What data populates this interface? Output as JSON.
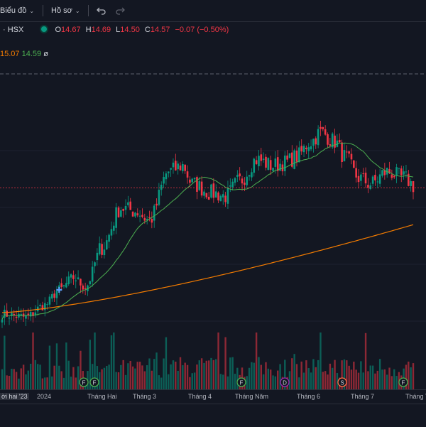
{
  "toolbar": {
    "chart_label": "Biểu đồ",
    "profile_label": "Hồ sơ"
  },
  "symbol": {
    "exchange_label": "· HSX",
    "o_label": "O",
    "o_value": "14.67",
    "h_label": "H",
    "h_value": "14.69",
    "l_label": "L",
    "l_value": "14.50",
    "c_label": "C",
    "c_value": "14.57",
    "change": "−0.07 (−0.50%)"
  },
  "indicator": {
    "slow": "15.07",
    "fast": "14.59",
    "suffix": "ø"
  },
  "colors": {
    "up": "#089981",
    "down": "#f23645",
    "ma_fast": "#4caf50",
    "ma_slow": "#f57c00",
    "background": "#131722"
  },
  "time_axis": {
    "current_label": "ời hai '23",
    "ticks": [
      "2024",
      "Tháng Hai",
      "Tháng 3",
      "Tháng 4",
      "Tháng Năm",
      "Tháng 6",
      "Tháng 7",
      "Tháng T"
    ]
  },
  "event_markers": [
    {
      "letter": "F",
      "kind": "dividend"
    },
    {
      "letter": "F",
      "kind": "dividend"
    },
    {
      "letter": "F",
      "kind": "dividend"
    },
    {
      "letter": "D",
      "kind": "earnings"
    },
    {
      "letter": "S",
      "kind": "split"
    },
    {
      "letter": "F",
      "kind": "dividend"
    }
  ],
  "chart_data": {
    "type": "candlestick",
    "ma_fast_period": 20,
    "ma_slow_period": 200,
    "price_line": 14.57,
    "ylim": [
      9.7,
      17.2
    ],
    "anchors": [
      [
        0,
        10.4
      ],
      [
        10,
        10.3
      ],
      [
        18,
        10.7
      ],
      [
        24,
        11.2
      ],
      [
        30,
        11.6
      ],
      [
        35,
        11.3
      ],
      [
        42,
        12.6
      ],
      [
        50,
        13.9
      ],
      [
        56,
        13.8
      ],
      [
        62,
        13.5
      ],
      [
        70,
        15.1
      ],
      [
        76,
        15.3
      ],
      [
        80,
        14.7
      ],
      [
        88,
        14.4
      ],
      [
        94,
        14.3
      ],
      [
        100,
        14.8
      ],
      [
        107,
        15.5
      ],
      [
        114,
        15.3
      ],
      [
        119,
        15.4
      ],
      [
        124,
        15.6
      ],
      [
        130,
        16.1
      ],
      [
        134,
        16.4
      ],
      [
        140,
        16.1
      ],
      [
        144,
        15.6
      ],
      [
        150,
        14.9
      ],
      [
        155,
        14.7
      ],
      [
        162,
        15.1
      ],
      [
        169,
        14.9
      ],
      [
        174,
        14.6
      ]
    ],
    "bars_count": 174,
    "volume_ylim": [
      0,
      100
    ]
  }
}
